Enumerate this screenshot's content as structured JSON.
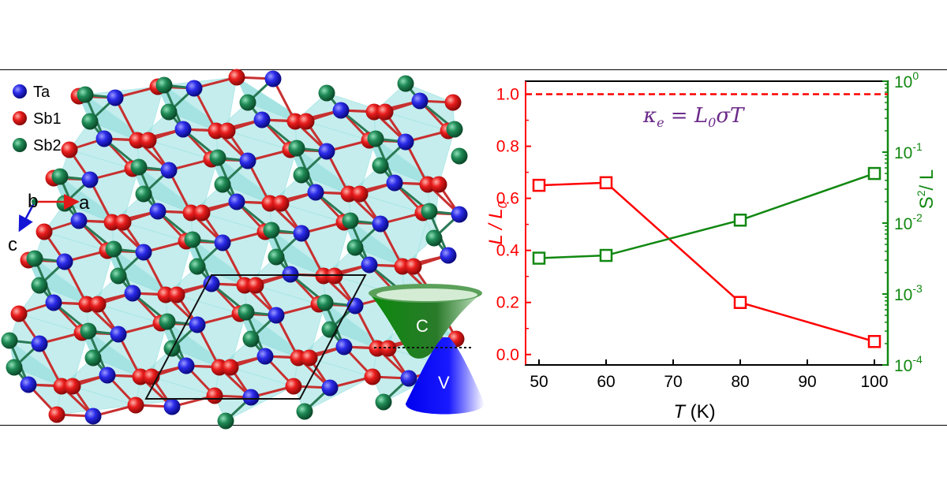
{
  "structure_panel": {
    "legend": [
      {
        "label": "Ta",
        "color": "#1515d6"
      },
      {
        "label": "Sb1",
        "color": "#e01818"
      },
      {
        "label": "Sb2",
        "color": "#157a4a"
      }
    ],
    "axes": {
      "b": "b",
      "a": "a",
      "c": "c"
    },
    "polyhedra_color": "#7fd8d8",
    "band_labels": {
      "conduction": "C",
      "valence": "V"
    },
    "band_colors": {
      "conduction": "#1f7a1f",
      "valence": "#1010e0"
    }
  },
  "chart_data": {
    "type": "line",
    "x": [
      50,
      60,
      80,
      100
    ],
    "xlabel_italic": "T",
    "xlabel_rest": " (K)",
    "xlim": [
      48,
      102
    ],
    "xticks": [
      "50",
      "60",
      "70",
      "80",
      "90",
      "100"
    ],
    "left_axis": {
      "label": "L / L0",
      "ylim": [
        -0.04,
        1.05
      ],
      "ticks": [
        "0.0",
        "0.2",
        "0.4",
        "0.6",
        "0.8",
        "1.0"
      ],
      "color": "#ff0000"
    },
    "right_axis": {
      "label": "S2 / L",
      "scale": "log",
      "ylim_exp": [
        -4,
        0
      ],
      "tick_base": "10",
      "tick_exps": [
        "-4",
        "-3",
        "-2",
        "-1",
        "0"
      ],
      "color": "#118811"
    },
    "series": [
      {
        "axis": "left",
        "color": "#ff0000",
        "values": [
          0.65,
          0.66,
          0.2,
          0.05
        ]
      },
      {
        "axis": "right",
        "color": "#118811",
        "values": [
          0.0032,
          0.0035,
          0.011,
          0.05
        ]
      }
    ],
    "reference_line": {
      "y": 1.0,
      "style": "dashed",
      "color": "#ff0000"
    },
    "annotation": {
      "text": "κe = L0σT",
      "color": "#6b2a8a"
    }
  }
}
